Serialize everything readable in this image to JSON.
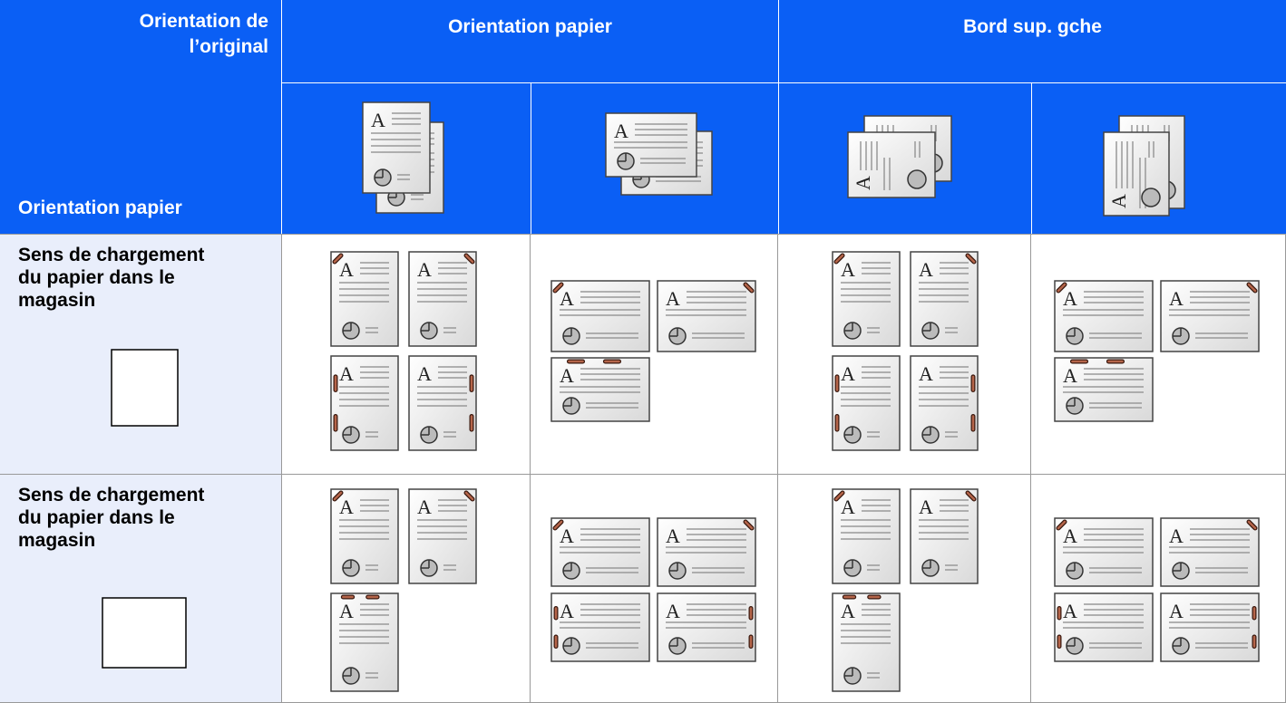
{
  "header": {
    "original_orientation": "Orientation de\nl’original",
    "paper_orientation_label": "Orientation papier",
    "columns": [
      "Orientation papier",
      "Bord sup. gche"
    ]
  },
  "rows": [
    {
      "label": "Sens de chargement\ndu papier dans le\nmagasin"
    },
    {
      "label": "Sens de chargement\ndu papier dans le\nmagasin"
    }
  ]
}
